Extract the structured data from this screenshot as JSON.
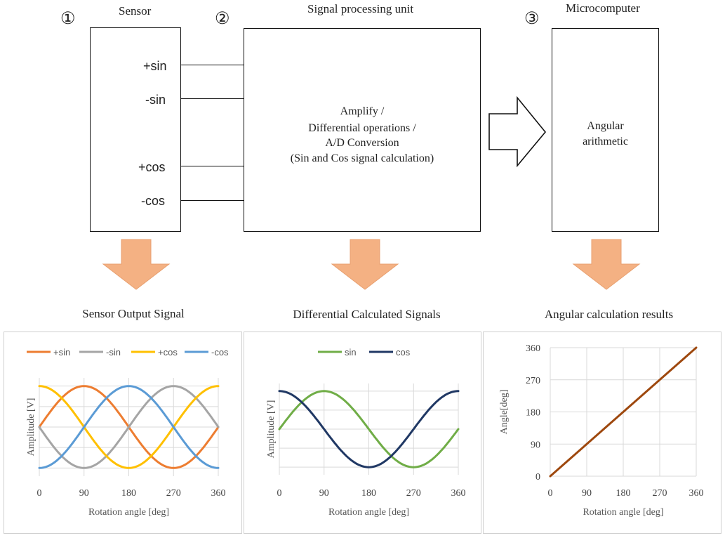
{
  "blocks": {
    "sensor": {
      "num": "①",
      "title": "Sensor",
      "outputs": [
        "+sin",
        "-sin",
        "+cos",
        "-cos"
      ]
    },
    "spu": {
      "num": "②",
      "title": "Signal processing unit",
      "desc": [
        "Amplify  /",
        "Differential  operations /",
        "A/D Conversion",
        "(Sin  and Cos signal calculation)"
      ]
    },
    "mcu": {
      "num": "③",
      "title": "Microcomputer",
      "desc": [
        "Angular",
        "arithmetic"
      ]
    }
  },
  "colors": {
    "plus_sin": "#ED7D31",
    "minus_sin": "#A5A5A5",
    "plus_cos": "#FFC000",
    "minus_cos": "#5B9BD5",
    "sin": "#70AD47",
    "cos": "#203864",
    "angle": "#9E480E",
    "arrow_fill": "#F4B183",
    "grid": "#d9d9d9"
  },
  "charts": {
    "sensor": {
      "title": "Sensor Output Signal"
    },
    "diff": {
      "title": "Differential  Calculated Signals"
    },
    "angle": {
      "title": "Angular calculation results"
    }
  },
  "chart_data": [
    {
      "type": "line",
      "title": "Sensor Output Signal",
      "xlabel": "Rotation angle  [deg]",
      "ylabel": "Amplitude [V]",
      "x": [
        0,
        90,
        180,
        270,
        360
      ],
      "xlim": [
        0,
        360
      ],
      "ylim": [
        -1.2,
        1.2
      ],
      "legend": "top",
      "series": [
        {
          "name": "+sin",
          "values": [
            0,
            1,
            0,
            -1,
            0
          ]
        },
        {
          "name": "-sin",
          "values": [
            0,
            -1,
            0,
            1,
            0
          ]
        },
        {
          "name": "+cos",
          "values": [
            1,
            0,
            -1,
            0,
            1
          ]
        },
        {
          "name": "-cos",
          "values": [
            -1,
            0,
            1,
            0,
            -1
          ]
        }
      ]
    },
    {
      "type": "line",
      "title": "Differential  Calculated Signals",
      "xlabel": "Rotation angle  [deg]",
      "ylabel": "Amplitude [V]",
      "x": [
        0,
        90,
        180,
        270,
        360
      ],
      "xlim": [
        0,
        360
      ],
      "ylim": [
        -1.2,
        1.2
      ],
      "legend": "top",
      "series": [
        {
          "name": "sin",
          "values": [
            0,
            1,
            0,
            -1,
            0
          ]
        },
        {
          "name": "cos",
          "values": [
            1,
            0,
            -1,
            0,
            1
          ]
        }
      ]
    },
    {
      "type": "line",
      "title": "Angular calculation results",
      "xlabel": "Rotation angle  [deg]",
      "ylabel": "Angle[deg]",
      "x": [
        0,
        90,
        180,
        270,
        360
      ],
      "xlim": [
        0,
        360
      ],
      "ylim": [
        0,
        360
      ],
      "yticks": [
        0,
        90,
        180,
        270,
        360
      ],
      "series": [
        {
          "name": "angle",
          "values": [
            0,
            90,
            180,
            270,
            360
          ]
        }
      ]
    }
  ]
}
